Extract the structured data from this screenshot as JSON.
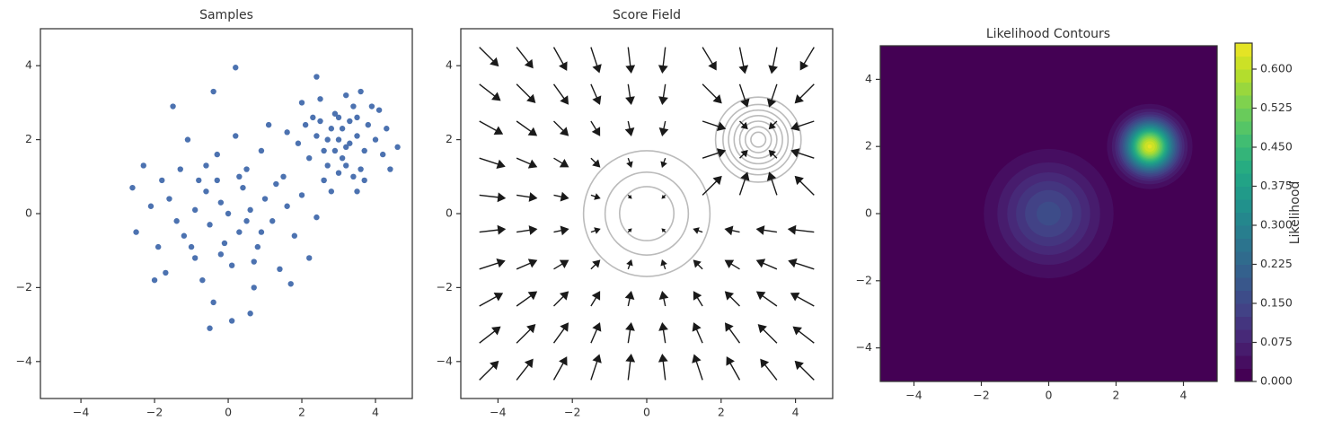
{
  "chart_data": [
    {
      "type": "scatter",
      "title": "Samples",
      "color": "#4c72b0",
      "x": [
        -0.2,
        0.3,
        -0.8,
        1.0,
        0.5,
        -1.2,
        0.1,
        -0.5,
        0.8,
        -1.6,
        1.5,
        -0.3,
        0.6,
        -0.9,
        1.2,
        -1.9,
        0.2,
        -0.6,
        0.9,
        -1.3,
        1.8,
        -0.1,
        0.4,
        -2.1,
        1.4,
        -0.7,
        2.0,
        -1.1,
        0.7,
        -0.4,
        1.1,
        -2.3,
        -1.7,
        2.2,
        0.0,
        -0.2,
        0.5,
        -0.9,
        1.6,
        -1.4,
        0.3,
        -0.6,
        0.9,
        -1.0,
        2.6,
        -2.0,
        0.1,
        1.3,
        -0.3,
        0.7,
        -1.8,
        2.4,
        -2.5,
        -1.5,
        0.2,
        -0.5,
        -2.6,
        0.6,
        1.7,
        -0.4,
        3.0,
        3.2,
        2.8,
        3.5,
        2.6,
        3.3,
        3.1,
        2.9,
        3.7,
        2.4,
        3.4,
        2.7,
        3.8,
        3.0,
        2.3,
        3.6,
        2.5,
        4.0,
        3.1,
        2.9,
        3.3,
        2.7,
        3.5,
        3.2,
        2.2,
        4.2,
        2.1,
        3.9,
        2.6,
        3.4,
        4.1,
        4.6,
        2.4,
        3.6,
        1.9,
        4.3,
        2.8,
        3.7,
        3.0,
        3.2,
        2.0,
        1.6,
        4.4,
        3.5,
        2.5
      ],
      "y": [
        0.3,
        -0.5,
        0.9,
        0.4,
        1.2,
        -0.6,
        -1.4,
        -0.3,
        -0.9,
        0.4,
        1.0,
        1.6,
        0.1,
        -1.2,
        -0.2,
        -0.9,
        2.1,
        0.6,
        1.7,
        1.2,
        -0.6,
        -0.8,
        0.7,
        0.2,
        -1.5,
        -1.8,
        0.5,
        2.0,
        -2.0,
        -2.4,
        2.4,
        1.3,
        -1.6,
        -1.2,
        0.0,
        -1.1,
        -0.2,
        0.1,
        0.2,
        -0.2,
        1.0,
        1.3,
        -0.5,
        -0.9,
        0.9,
        -1.8,
        -2.9,
        0.8,
        0.9,
        -1.3,
        0.9,
        -0.1,
        -0.5,
        2.9,
        3.95,
        -3.1,
        0.7,
        -2.7,
        -1.9,
        3.3,
        2.0,
        1.8,
        2.3,
        2.1,
        1.7,
        2.5,
        1.5,
        2.7,
        1.7,
        2.1,
        2.9,
        1.3,
        2.4,
        1.1,
        2.6,
        1.2,
        3.1,
        2.0,
        2.3,
        1.7,
        1.9,
        2.0,
        2.6,
        3.2,
        1.5,
        1.6,
        2.4,
        2.9,
        0.9,
        1.0,
        2.8,
        1.8,
        3.7,
        3.3,
        1.9,
        2.3,
        0.6,
        0.9,
        2.6,
        1.3,
        3.0,
        2.2,
        1.2,
        0.6,
        2.5
      ],
      "xlim": [
        -5.1,
        5.0
      ],
      "ylim": [
        -5,
        5
      ],
      "xticks": [
        {
          "value": -4,
          "label": "−4"
        },
        {
          "value": -2,
          "label": "−2"
        },
        0,
        2,
        4
      ],
      "yticks": [
        {
          "value": -4,
          "label": "−4"
        },
        {
          "value": -2,
          "label": "−2"
        },
        0,
        2,
        4
      ]
    },
    {
      "type": "quiver",
      "title": "Score Field",
      "color": "#1a1a1a",
      "x": [
        -4.5,
        -3.5,
        -2.5,
        -1.5,
        -0.5,
        0.5,
        1.5,
        2.5,
        3.5,
        4.5
      ],
      "y": [
        -4.5,
        -3.5,
        -2.5,
        -1.5,
        -0.5,
        0.5,
        1.5,
        2.5,
        3.5,
        4.5
      ],
      "u": [
        [
          0.5,
          0.43,
          0.34,
          0.22,
          0.08,
          -0.08,
          -0.22,
          -0.34,
          -0.43,
          -0.5
        ],
        [
          0.55,
          0.49,
          0.38,
          0.23,
          0.08,
          -0.08,
          -0.23,
          -0.38,
          -0.49,
          -0.55
        ],
        [
          0.61,
          0.53,
          0.38,
          0.23,
          0.08,
          -0.08,
          -0.23,
          -0.38,
          -0.53,
          -0.61
        ],
        [
          0.67,
          0.53,
          0.38,
          0.23,
          0.08,
          -0.08,
          -0.23,
          -0.38,
          -0.53,
          -0.67
        ],
        [
          0.68,
          0.53,
          0.38,
          0.23,
          0.08,
          -0.08,
          -0.23,
          -0.38,
          -0.53,
          -0.68
        ],
        [
          0.68,
          0.53,
          0.38,
          0.23,
          0.08,
          -0.08,
          0.5,
          0.2,
          -0.2,
          -0.5
        ],
        [
          0.67,
          0.53,
          0.38,
          0.23,
          0.08,
          -0.08,
          0.6,
          0.2,
          -0.2,
          -0.6
        ],
        [
          0.61,
          0.53,
          0.38,
          0.23,
          0.08,
          -0.08,
          0.6,
          0.2,
          -0.2,
          -0.6
        ],
        [
          0.55,
          0.49,
          0.38,
          0.23,
          0.08,
          -0.08,
          0.5,
          0.2,
          -0.2,
          -0.5
        ],
        [
          0.5,
          0.43,
          0.34,
          0.22,
          0.08,
          -0.08,
          0.36,
          0.14,
          -0.14,
          -0.36
        ]
      ],
      "v": [
        [
          0.5,
          0.55,
          0.61,
          0.67,
          0.68,
          0.68,
          0.67,
          0.61,
          0.55,
          0.5
        ],
        [
          0.43,
          0.49,
          0.53,
          0.53,
          0.53,
          0.53,
          0.53,
          0.53,
          0.49,
          0.43
        ],
        [
          0.34,
          0.38,
          0.38,
          0.38,
          0.38,
          0.38,
          0.38,
          0.38,
          0.38,
          0.34
        ],
        [
          0.22,
          0.23,
          0.23,
          0.23,
          0.23,
          0.23,
          0.23,
          0.23,
          0.23,
          0.22
        ],
        [
          0.08,
          0.08,
          0.08,
          0.08,
          0.08,
          0.08,
          0.08,
          0.08,
          0.08,
          0.08
        ],
        [
          -0.08,
          -0.08,
          -0.08,
          -0.08,
          -0.08,
          -0.08,
          0.5,
          0.6,
          0.6,
          0.5
        ],
        [
          -0.22,
          -0.23,
          -0.23,
          -0.23,
          -0.23,
          -0.23,
          0.2,
          0.2,
          0.2,
          0.2
        ],
        [
          -0.34,
          -0.38,
          -0.38,
          -0.38,
          -0.38,
          -0.38,
          -0.2,
          -0.2,
          -0.2,
          -0.2
        ],
        [
          -0.43,
          -0.49,
          -0.53,
          -0.53,
          -0.53,
          -0.53,
          -0.5,
          -0.6,
          -0.6,
          -0.5
        ],
        [
          -0.5,
          -0.55,
          -0.61,
          -0.67,
          -0.68,
          -0.68,
          -0.6,
          -0.69,
          -0.69,
          -0.6
        ]
      ],
      "contours": [
        {
          "center": [
            0,
            0
          ],
          "radii": [
            0.73,
            1.12,
            1.7
          ]
        },
        {
          "center": [
            3,
            2
          ],
          "radii": [
            0.2,
            0.35,
            0.5,
            0.65,
            0.8,
            0.95,
            1.15
          ]
        }
      ],
      "contour_color": "#bbbbbb",
      "xlim": [
        -5,
        5
      ],
      "ylim": [
        -5,
        5
      ],
      "xticks": [
        {
          "value": -4,
          "label": "−4"
        },
        {
          "value": -2,
          "label": "−2"
        },
        0,
        2,
        4
      ],
      "yticks": [
        {
          "value": -4,
          "label": "−4"
        },
        {
          "value": -2,
          "label": "−2"
        },
        0,
        2,
        4
      ]
    },
    {
      "type": "contourf",
      "title": "Likelihood Contours",
      "colormap": "viridis",
      "components": [
        {
          "center": [
            0,
            0
          ],
          "peak": 0.16,
          "sigma": 1
        },
        {
          "center": [
            3,
            2
          ],
          "peak": 0.63,
          "sigma": 0.5
        }
      ],
      "levels": [
        0,
        0.025,
        0.05,
        0.075,
        0.1,
        0.125,
        0.15,
        0.175,
        0.2,
        0.225,
        0.25,
        0.275,
        0.3,
        0.325,
        0.35,
        0.375,
        0.4,
        0.425,
        0.45,
        0.475,
        0.5,
        0.525,
        0.55,
        0.575,
        0.6,
        0.625
      ],
      "clim": [
        0,
        0.65
      ],
      "colorbar_label": "Likelihood",
      "cticks": [
        {
          "value": 0,
          "label": "0.000"
        },
        {
          "value": 0.075,
          "label": "0.075"
        },
        {
          "value": 0.15,
          "label": "0.150"
        },
        {
          "value": 0.225,
          "label": "0.225"
        },
        {
          "value": 0.3,
          "label": "0.300"
        },
        {
          "value": 0.375,
          "label": "0.375"
        },
        {
          "value": 0.45,
          "label": "0.450"
        },
        {
          "value": 0.525,
          "label": "0.525"
        },
        {
          "value": 0.6,
          "label": "0.600"
        }
      ],
      "xlim": [
        -5,
        5
      ],
      "ylim": [
        -5,
        5
      ],
      "xticks": [
        {
          "value": -4,
          "label": "−4"
        },
        {
          "value": -2,
          "label": "−2"
        },
        0,
        2,
        4
      ],
      "yticks": [
        {
          "value": -4,
          "label": "−4"
        },
        {
          "value": -2,
          "label": "−2"
        },
        0,
        2,
        4
      ]
    }
  ]
}
